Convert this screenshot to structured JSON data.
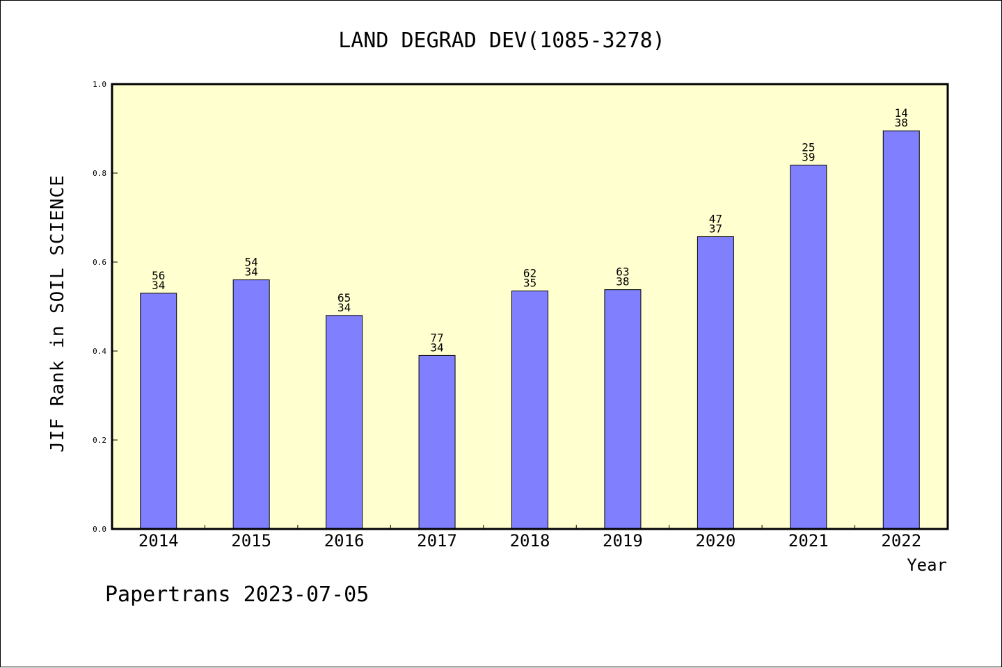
{
  "chart_data": {
    "type": "bar",
    "title": "LAND DEGRAD DEV(1085-3278)",
    "xlabel": "Year",
    "ylabel": "JIF Rank in SOIL SCIENCE",
    "ylim": [
      0.0,
      1.0
    ],
    "yticks": [
      "0.0",
      "0.2",
      "0.4",
      "0.6",
      "0.8",
      "1.0"
    ],
    "ytick_values": [
      0.0,
      0.2,
      0.4,
      0.6,
      0.8,
      1.0
    ],
    "categories": [
      "2014",
      "2015",
      "2016",
      "2017",
      "2018",
      "2019",
      "2020",
      "2021",
      "2022"
    ],
    "values": [
      0.53,
      0.56,
      0.48,
      0.39,
      0.535,
      0.538,
      0.657,
      0.818,
      0.895
    ],
    "rank": [
      "56",
      "54",
      "65",
      "77",
      "62",
      "63",
      "47",
      "25",
      "14"
    ],
    "total": [
      "34",
      "34",
      "34",
      "34",
      "35",
      "38",
      "37",
      "39",
      "38"
    ],
    "grid": false,
    "legend": "none",
    "colors": {
      "plot_background": "#ffffd0",
      "bar_fill": "#8080ff",
      "bar_stroke": "#000000",
      "axis": "#000000"
    }
  },
  "footer": {
    "text": "Papertrans 2023-07-05"
  }
}
